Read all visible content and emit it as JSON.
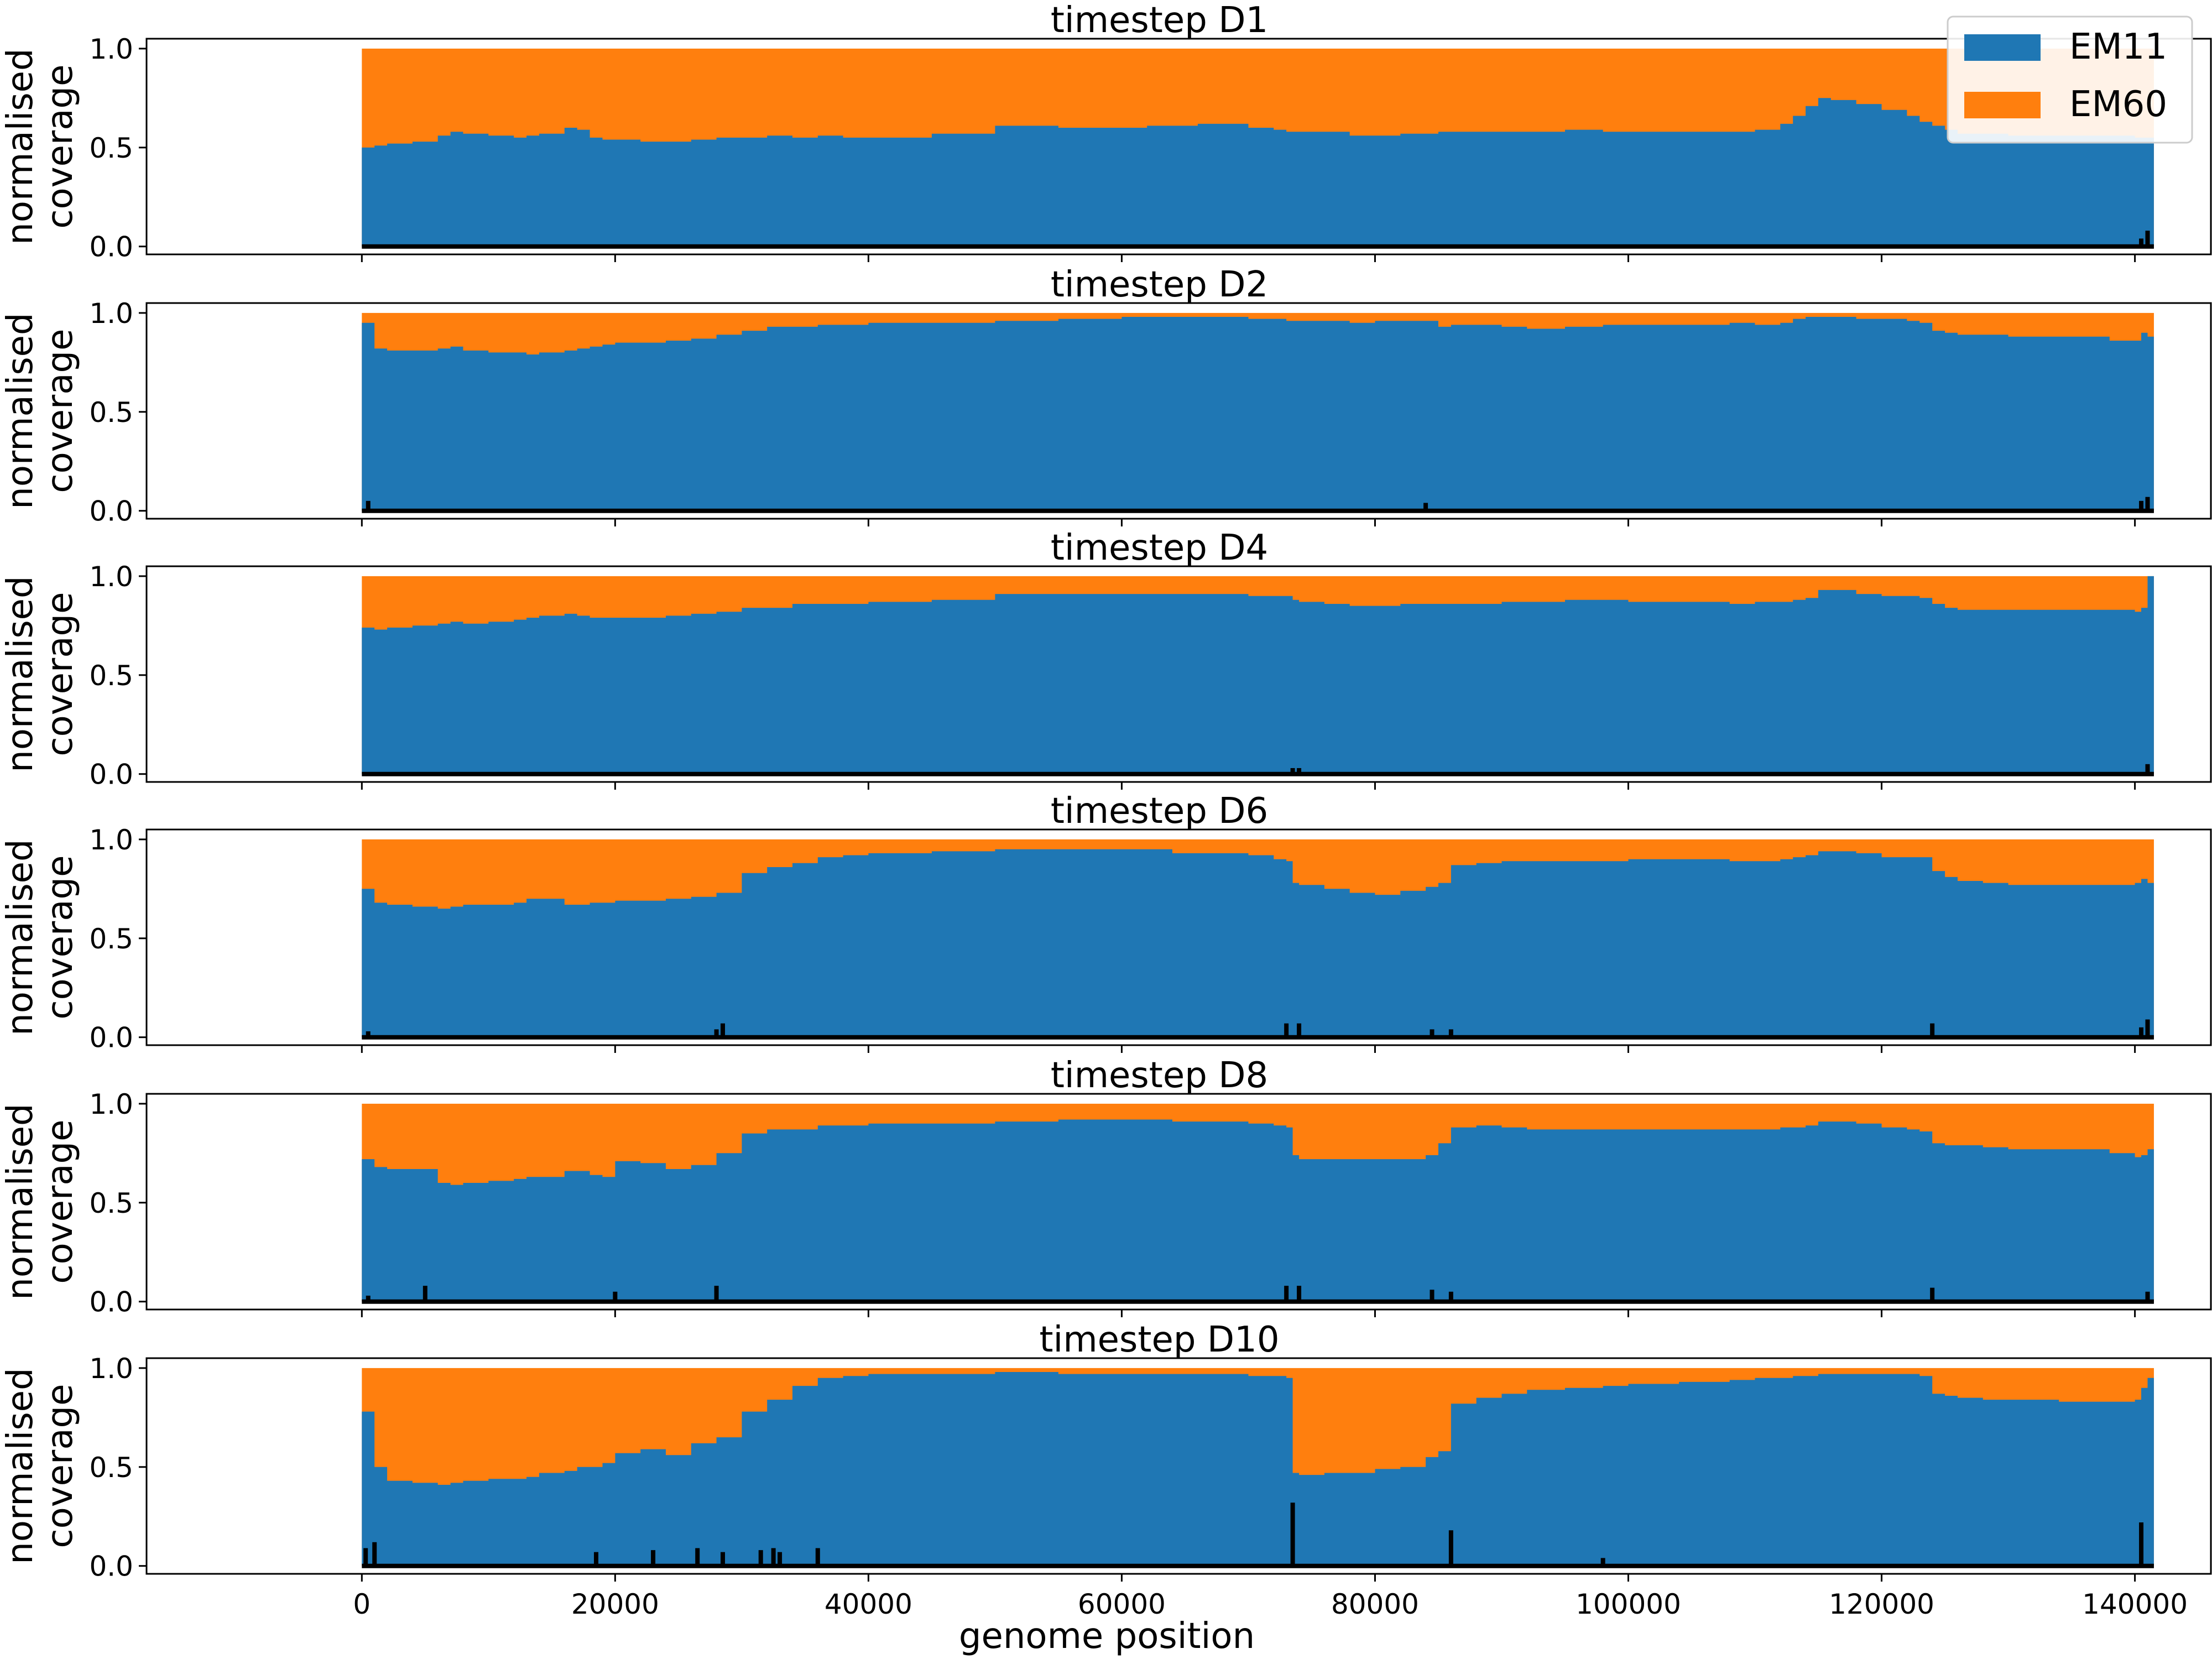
{
  "chart_data": {
    "type": "area",
    "stacked": true,
    "normalised": true,
    "xlabel": "genome position",
    "ylabel_lines": [
      "normalised",
      "coverage"
    ],
    "xlim": [
      -17000,
      146000
    ],
    "ylim": [
      -0.04,
      1.05
    ],
    "x_ticks": [
      0,
      20000,
      40000,
      60000,
      80000,
      100000,
      120000,
      140000
    ],
    "y_ticks": [
      0.0,
      0.5,
      1.0
    ],
    "y_tick_labels": [
      "0.0",
      "0.5",
      "1.0"
    ],
    "genome_length": 141500,
    "legend": {
      "placement": "top-right",
      "entries": [
        {
          "label": "EM11",
          "color": "#1f77b4"
        },
        {
          "label": "EM60",
          "color": "#ff7f0e"
        }
      ]
    },
    "baseline_color": "#000000",
    "x": [
      0,
      1000,
      2000,
      4000,
      6000,
      7000,
      8000,
      10000,
      12000,
      13000,
      14000,
      16000,
      17000,
      18000,
      19000,
      20000,
      22000,
      24000,
      26000,
      28000,
      30000,
      32000,
      34000,
      36000,
      38000,
      40000,
      45000,
      50000,
      55000,
      60000,
      62000,
      64000,
      66000,
      70000,
      72000,
      73000,
      73500,
      74000,
      76000,
      78000,
      80000,
      82000,
      84000,
      85000,
      86000,
      88000,
      90000,
      92000,
      95000,
      98000,
      100000,
      104000,
      108000,
      110000,
      112000,
      113000,
      114000,
      115000,
      116000,
      118000,
      120000,
      122000,
      123000,
      124000,
      125000,
      126000,
      128000,
      130000,
      134000,
      138000,
      140000,
      140500,
      141000,
      141500
    ],
    "panels": [
      {
        "title": "timestep D1",
        "em11": [
          0.5,
          0.51,
          0.52,
          0.53,
          0.56,
          0.58,
          0.57,
          0.56,
          0.55,
          0.56,
          0.57,
          0.6,
          0.59,
          0.55,
          0.54,
          0.54,
          0.53,
          0.53,
          0.54,
          0.55,
          0.55,
          0.56,
          0.55,
          0.56,
          0.55,
          0.55,
          0.57,
          0.61,
          0.6,
          0.6,
          0.61,
          0.61,
          0.62,
          0.6,
          0.59,
          0.58,
          0.58,
          0.58,
          0.58,
          0.56,
          0.56,
          0.57,
          0.57,
          0.58,
          0.58,
          0.58,
          0.58,
          0.58,
          0.59,
          0.58,
          0.58,
          0.58,
          0.58,
          0.59,
          0.62,
          0.66,
          0.71,
          0.75,
          0.74,
          0.72,
          0.69,
          0.66,
          0.63,
          0.61,
          0.59,
          0.57,
          0.57,
          0.56,
          0.56,
          0.56,
          0.55,
          0.55,
          0.55,
          0.55
        ],
        "baseline_spikes": [
          [
            140500,
            0.04
          ],
          [
            141000,
            0.08
          ]
        ]
      },
      {
        "title": "timestep D2",
        "em11": [
          0.95,
          0.82,
          0.81,
          0.81,
          0.82,
          0.83,
          0.81,
          0.8,
          0.8,
          0.79,
          0.8,
          0.81,
          0.82,
          0.83,
          0.84,
          0.85,
          0.85,
          0.86,
          0.87,
          0.89,
          0.91,
          0.93,
          0.93,
          0.94,
          0.94,
          0.95,
          0.95,
          0.96,
          0.97,
          0.98,
          0.98,
          0.98,
          0.98,
          0.97,
          0.97,
          0.96,
          0.96,
          0.96,
          0.96,
          0.95,
          0.96,
          0.96,
          0.96,
          0.93,
          0.94,
          0.94,
          0.93,
          0.92,
          0.93,
          0.94,
          0.94,
          0.94,
          0.95,
          0.94,
          0.95,
          0.97,
          0.98,
          0.98,
          0.98,
          0.97,
          0.97,
          0.96,
          0.95,
          0.91,
          0.9,
          0.89,
          0.89,
          0.88,
          0.88,
          0.86,
          0.86,
          0.9,
          0.88,
          0.0
        ],
        "baseline_spikes": [
          [
            500,
            0.05
          ],
          [
            84000,
            0.04
          ],
          [
            140500,
            0.05
          ],
          [
            141000,
            0.07
          ]
        ]
      },
      {
        "title": "timestep D4",
        "em11": [
          0.74,
          0.73,
          0.74,
          0.75,
          0.76,
          0.77,
          0.76,
          0.77,
          0.78,
          0.79,
          0.8,
          0.81,
          0.8,
          0.79,
          0.79,
          0.79,
          0.79,
          0.8,
          0.81,
          0.82,
          0.84,
          0.84,
          0.86,
          0.86,
          0.86,
          0.87,
          0.88,
          0.91,
          0.91,
          0.91,
          0.91,
          0.91,
          0.91,
          0.9,
          0.9,
          0.9,
          0.88,
          0.87,
          0.86,
          0.85,
          0.85,
          0.86,
          0.86,
          0.86,
          0.86,
          0.86,
          0.87,
          0.87,
          0.88,
          0.88,
          0.87,
          0.87,
          0.86,
          0.87,
          0.87,
          0.88,
          0.89,
          0.93,
          0.93,
          0.91,
          0.9,
          0.9,
          0.89,
          0.86,
          0.84,
          0.83,
          0.83,
          0.83,
          0.83,
          0.83,
          0.82,
          0.84,
          1.0,
          1.0
        ],
        "baseline_spikes": [
          [
            73500,
            0.03
          ],
          [
            74000,
            0.03
          ],
          [
            141000,
            0.05
          ]
        ]
      },
      {
        "title": "timestep D6",
        "em11": [
          0.75,
          0.68,
          0.67,
          0.66,
          0.65,
          0.66,
          0.67,
          0.67,
          0.68,
          0.7,
          0.7,
          0.67,
          0.67,
          0.68,
          0.68,
          0.69,
          0.69,
          0.7,
          0.71,
          0.73,
          0.83,
          0.86,
          0.88,
          0.91,
          0.92,
          0.93,
          0.94,
          0.95,
          0.95,
          0.95,
          0.95,
          0.93,
          0.93,
          0.92,
          0.9,
          0.89,
          0.78,
          0.77,
          0.75,
          0.73,
          0.72,
          0.74,
          0.76,
          0.78,
          0.87,
          0.88,
          0.89,
          0.89,
          0.89,
          0.89,
          0.9,
          0.9,
          0.89,
          0.89,
          0.9,
          0.91,
          0.92,
          0.94,
          0.94,
          0.93,
          0.91,
          0.91,
          0.91,
          0.84,
          0.81,
          0.79,
          0.78,
          0.77,
          0.77,
          0.77,
          0.78,
          0.8,
          0.78,
          0.0
        ],
        "baseline_spikes": [
          [
            500,
            0.03
          ],
          [
            28000,
            0.04
          ],
          [
            28500,
            0.07
          ],
          [
            73000,
            0.07
          ],
          [
            74000,
            0.07
          ],
          [
            84500,
            0.04
          ],
          [
            86000,
            0.04
          ],
          [
            124000,
            0.07
          ],
          [
            140500,
            0.05
          ],
          [
            141000,
            0.09
          ]
        ]
      },
      {
        "title": "timestep D8",
        "em11": [
          0.72,
          0.68,
          0.67,
          0.67,
          0.6,
          0.59,
          0.6,
          0.61,
          0.62,
          0.63,
          0.63,
          0.66,
          0.66,
          0.64,
          0.63,
          0.71,
          0.7,
          0.67,
          0.69,
          0.75,
          0.85,
          0.87,
          0.87,
          0.89,
          0.89,
          0.9,
          0.9,
          0.91,
          0.92,
          0.92,
          0.92,
          0.91,
          0.91,
          0.9,
          0.89,
          0.88,
          0.74,
          0.72,
          0.72,
          0.72,
          0.72,
          0.72,
          0.74,
          0.8,
          0.88,
          0.89,
          0.88,
          0.87,
          0.87,
          0.87,
          0.87,
          0.87,
          0.87,
          0.87,
          0.88,
          0.88,
          0.89,
          0.91,
          0.91,
          0.9,
          0.88,
          0.87,
          0.86,
          0.8,
          0.79,
          0.79,
          0.78,
          0.77,
          0.77,
          0.75,
          0.73,
          0.74,
          0.77,
          0.0
        ],
        "baseline_spikes": [
          [
            500,
            0.03
          ],
          [
            5000,
            0.08
          ],
          [
            20000,
            0.05
          ],
          [
            28000,
            0.08
          ],
          [
            73000,
            0.08
          ],
          [
            74000,
            0.08
          ],
          [
            84500,
            0.06
          ],
          [
            86000,
            0.05
          ],
          [
            124000,
            0.07
          ],
          [
            141000,
            0.05
          ]
        ]
      },
      {
        "title": "timestep D10",
        "em11": [
          0.78,
          0.5,
          0.43,
          0.42,
          0.41,
          0.42,
          0.43,
          0.44,
          0.44,
          0.45,
          0.47,
          0.48,
          0.5,
          0.5,
          0.52,
          0.57,
          0.59,
          0.56,
          0.62,
          0.65,
          0.78,
          0.84,
          0.91,
          0.95,
          0.96,
          0.97,
          0.97,
          0.98,
          0.97,
          0.97,
          0.97,
          0.97,
          0.97,
          0.96,
          0.96,
          0.95,
          0.47,
          0.46,
          0.47,
          0.47,
          0.49,
          0.5,
          0.55,
          0.58,
          0.82,
          0.85,
          0.87,
          0.89,
          0.9,
          0.91,
          0.92,
          0.93,
          0.94,
          0.95,
          0.95,
          0.96,
          0.96,
          0.97,
          0.97,
          0.97,
          0.97,
          0.97,
          0.96,
          0.87,
          0.86,
          0.85,
          0.84,
          0.84,
          0.83,
          0.83,
          0.84,
          0.9,
          0.95,
          0.0
        ],
        "baseline_spikes": [
          [
            300,
            0.09
          ],
          [
            1000,
            0.12
          ],
          [
            18500,
            0.07
          ],
          [
            23000,
            0.08
          ],
          [
            26500,
            0.09
          ],
          [
            28500,
            0.07
          ],
          [
            31500,
            0.08
          ],
          [
            32500,
            0.09
          ],
          [
            33000,
            0.07
          ],
          [
            36000,
            0.09
          ],
          [
            73500,
            0.32
          ],
          [
            86000,
            0.18
          ],
          [
            98000,
            0.04
          ],
          [
            140500,
            0.22
          ]
        ]
      }
    ]
  }
}
